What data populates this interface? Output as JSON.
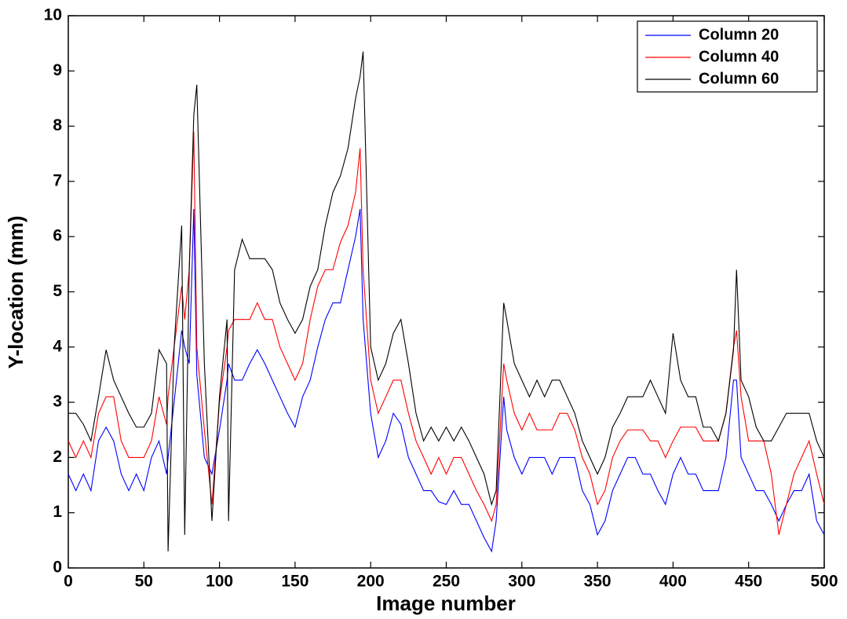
{
  "chart_data": {
    "type": "line",
    "x_label": "Image number",
    "y_label": "Y-location (mm)",
    "xlim": [
      0,
      500
    ],
    "ylim": [
      0,
      10
    ],
    "xticks": [
      0,
      50,
      100,
      150,
      200,
      250,
      300,
      350,
      400,
      450,
      500
    ],
    "yticks": [
      0,
      1,
      2,
      3,
      4,
      5,
      6,
      7,
      8,
      9,
      10
    ],
    "legend": "upper-right",
    "grid": false,
    "x": [
      0,
      5,
      10,
      15,
      20,
      25,
      30,
      35,
      40,
      45,
      50,
      55,
      60,
      65,
      66,
      70,
      75,
      77,
      80,
      83,
      85,
      90,
      95,
      100,
      105,
      106,
      110,
      115,
      120,
      125,
      130,
      135,
      140,
      145,
      150,
      155,
      160,
      165,
      170,
      175,
      180,
      185,
      190,
      193,
      195,
      200,
      205,
      210,
      215,
      220,
      225,
      230,
      235,
      240,
      245,
      250,
      255,
      260,
      265,
      270,
      275,
      280,
      283,
      288,
      290,
      295,
      300,
      305,
      310,
      315,
      320,
      325,
      330,
      335,
      340,
      345,
      350,
      355,
      360,
      365,
      370,
      375,
      380,
      385,
      390,
      395,
      400,
      405,
      410,
      415,
      420,
      425,
      430,
      435,
      440,
      442,
      445,
      450,
      455,
      460,
      465,
      470,
      475,
      480,
      485,
      490,
      495,
      500
    ],
    "series": [
      {
        "name": "Column 20",
        "color": "#0000ff",
        "values": [
          1.7,
          1.4,
          1.7,
          1.4,
          2.3,
          2.55,
          2.3,
          1.7,
          1.4,
          1.7,
          1.4,
          2.0,
          2.3,
          1.7,
          2.0,
          3.0,
          4.3,
          4.0,
          3.7,
          6.5,
          3.5,
          2.0,
          1.7,
          2.5,
          3.4,
          3.7,
          3.4,
          3.4,
          3.7,
          3.95,
          3.7,
          3.4,
          3.1,
          2.8,
          2.55,
          3.1,
          3.4,
          4.0,
          4.5,
          4.8,
          4.8,
          5.4,
          6.0,
          6.5,
          4.5,
          2.8,
          2.0,
          2.3,
          2.8,
          2.6,
          2.0,
          1.7,
          1.4,
          1.4,
          1.2,
          1.15,
          1.4,
          1.15,
          1.15,
          0.85,
          0.55,
          0.3,
          0.85,
          3.1,
          2.5,
          2.0,
          1.7,
          2.0,
          2.0,
          2.0,
          1.7,
          2.0,
          2.0,
          2.0,
          1.4,
          1.15,
          0.6,
          0.85,
          1.4,
          1.7,
          2.0,
          2.0,
          1.7,
          1.7,
          1.4,
          1.15,
          1.7,
          2.0,
          1.7,
          1.7,
          1.4,
          1.4,
          1.4,
          2.0,
          3.4,
          3.4,
          2.0,
          1.7,
          1.4,
          1.4,
          1.15,
          0.85,
          1.15,
          1.4,
          1.4,
          1.7,
          0.85,
          0.6
        ]
      },
      {
        "name": "Column 40",
        "color": "#ff0000",
        "values": [
          2.3,
          2.0,
          2.3,
          2.0,
          2.8,
          3.1,
          3.1,
          2.3,
          2.0,
          2.0,
          2.0,
          2.3,
          3.1,
          2.6,
          3.1,
          4.0,
          5.1,
          4.5,
          5.4,
          7.9,
          4.0,
          2.5,
          1.15,
          3.0,
          4.0,
          4.3,
          4.5,
          4.5,
          4.5,
          4.8,
          4.5,
          4.5,
          4.0,
          3.7,
          3.4,
          3.7,
          4.5,
          5.1,
          5.4,
          5.4,
          5.9,
          6.2,
          6.8,
          7.6,
          5.4,
          3.4,
          2.8,
          3.1,
          3.4,
          3.4,
          2.8,
          2.3,
          2.0,
          1.7,
          2.0,
          1.7,
          2.0,
          2.0,
          1.7,
          1.4,
          1.15,
          0.85,
          1.15,
          3.7,
          3.4,
          2.8,
          2.5,
          2.8,
          2.5,
          2.5,
          2.5,
          2.8,
          2.8,
          2.5,
          2.0,
          1.7,
          1.15,
          1.4,
          2.0,
          2.3,
          2.5,
          2.5,
          2.5,
          2.3,
          2.3,
          2.0,
          2.3,
          2.55,
          2.55,
          2.55,
          2.3,
          2.3,
          2.3,
          2.8,
          4.0,
          4.3,
          3.1,
          2.3,
          2.3,
          2.3,
          1.7,
          0.6,
          1.15,
          1.7,
          2.0,
          2.3,
          1.7,
          1.15
        ]
      },
      {
        "name": "Column 60",
        "color": "#000000",
        "values": [
          2.8,
          2.8,
          2.6,
          2.3,
          3.1,
          3.95,
          3.4,
          3.1,
          2.8,
          2.55,
          2.55,
          2.8,
          3.95,
          3.7,
          0.3,
          4.0,
          6.2,
          0.6,
          5.4,
          8.2,
          8.75,
          3.7,
          0.85,
          3.1,
          4.5,
          0.85,
          5.4,
          5.95,
          5.6,
          5.6,
          5.6,
          5.4,
          4.8,
          4.5,
          4.25,
          4.5,
          5.1,
          5.4,
          6.2,
          6.8,
          7.1,
          7.6,
          8.5,
          8.9,
          9.35,
          4.0,
          3.4,
          3.7,
          4.25,
          4.5,
          3.7,
          2.8,
          2.3,
          2.55,
          2.3,
          2.55,
          2.3,
          2.55,
          2.3,
          2.0,
          1.7,
          1.15,
          1.4,
          4.8,
          4.5,
          3.7,
          3.4,
          3.1,
          3.4,
          3.1,
          3.4,
          3.4,
          3.1,
          2.8,
          2.3,
          2.0,
          1.7,
          2.0,
          2.55,
          2.8,
          3.1,
          3.1,
          3.1,
          3.4,
          3.1,
          2.8,
          4.25,
          3.4,
          3.1,
          3.1,
          2.55,
          2.55,
          2.3,
          2.8,
          3.95,
          5.4,
          3.4,
          3.1,
          2.55,
          2.3,
          2.3,
          2.55,
          2.8,
          2.8,
          2.8,
          2.8,
          2.3,
          2.0
        ]
      }
    ]
  }
}
